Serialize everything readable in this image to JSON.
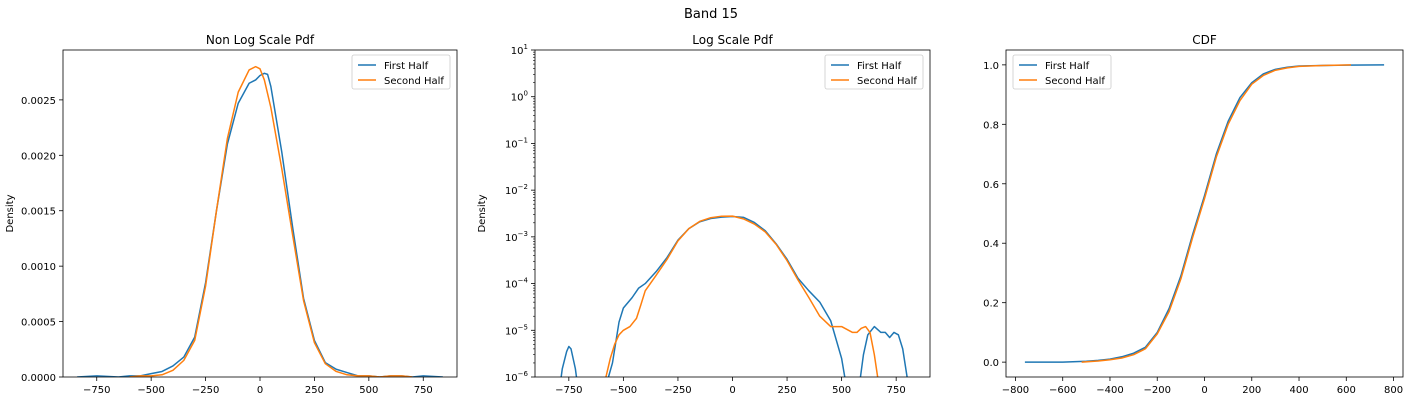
{
  "figure_title": "Band 15",
  "colors": {
    "first": "#1f77b4",
    "second": "#ff7f0e"
  },
  "chart_data": [
    {
      "type": "line",
      "title": "Non Log Scale Pdf",
      "xlabel": "",
      "ylabel": "Density",
      "xlim": [
        -905,
        905
      ],
      "ylim": [
        0,
        0.00295
      ],
      "xticks": [
        -750,
        -500,
        -250,
        0,
        250,
        500,
        750
      ],
      "xtick_labels": [
        "−750",
        "−500",
        "−250",
        "0",
        "250",
        "500",
        "750"
      ],
      "yticks": [
        0,
        0.0005,
        0.001,
        0.0015,
        0.002,
        0.0025
      ],
      "ytick_labels": [
        "0.0000",
        "0.0005",
        "0.0010",
        "0.0015",
        "0.0020",
        "0.0025"
      ],
      "grid": false,
      "legend": "upper-right",
      "series": [
        {
          "name": "First Half",
          "color": "#1f77b4",
          "x": [
            -840,
            -750,
            -650,
            -600,
            -550,
            -500,
            -450,
            -400,
            -350,
            -300,
            -250,
            -200,
            -150,
            -100,
            -50,
            -20,
            0,
            20,
            35,
            50,
            100,
            150,
            200,
            250,
            300,
            350,
            400,
            450,
            500,
            550,
            600,
            650,
            700,
            750,
            840
          ],
          "y": [
            0.0,
            1e-05,
            0.0,
            1e-05,
            1e-05,
            3e-05,
            5e-05,
            0.0001,
            0.00018,
            0.00036,
            0.00085,
            0.0015,
            0.0021,
            0.00247,
            0.00265,
            0.00268,
            0.00272,
            0.00274,
            0.00273,
            0.00262,
            0.00203,
            0.00135,
            0.00071,
            0.00033,
            0.00013,
            7e-05,
            4e-05,
            1e-05,
            1e-05,
            0.0,
            1e-05,
            1e-05,
            0.0,
            1e-05,
            0.0
          ]
        },
        {
          "name": "Second Half",
          "color": "#ff7f0e",
          "x": [
            -600,
            -550,
            -500,
            -450,
            -400,
            -350,
            -300,
            -250,
            -200,
            -150,
            -100,
            -50,
            -20,
            0,
            20,
            50,
            100,
            150,
            200,
            250,
            300,
            350,
            400,
            450,
            500,
            550,
            600,
            650,
            700
          ],
          "y": [
            0.0,
            1e-05,
            1e-05,
            2e-05,
            6e-05,
            0.00015,
            0.00033,
            0.00082,
            0.0015,
            0.00215,
            0.00257,
            0.00277,
            0.0028,
            0.00278,
            0.00268,
            0.00243,
            0.00188,
            0.00128,
            0.00069,
            0.00031,
            0.00012,
            5e-05,
            2e-05,
            1e-05,
            1e-05,
            0.0,
            1e-05,
            1e-05,
            0.0
          ]
        }
      ]
    },
    {
      "type": "line",
      "title": "Log Scale Pdf",
      "xlabel": "",
      "ylabel": "Density",
      "xscale": "linear",
      "yscale": "log",
      "xlim": [
        -905,
        905
      ],
      "ylim_exp": [
        -6,
        1
      ],
      "xticks": [
        -750,
        -500,
        -250,
        0,
        250,
        500,
        750
      ],
      "xtick_labels": [
        "−750",
        "−500",
        "−250",
        "0",
        "250",
        "500",
        "750"
      ],
      "yticks_exp": [
        -6,
        -5,
        -4,
        -3,
        -2,
        -1,
        0,
        1
      ],
      "grid": false,
      "legend": "upper-right",
      "series": [
        {
          "name": "First Half",
          "color": "#1f77b4",
          "x": [
            -800,
            -780,
            -760,
            -750,
            -740,
            -720,
            -700,
            -600,
            -550,
            -520,
            -500,
            -460,
            -430,
            -400,
            -350,
            -300,
            -250,
            -200,
            -150,
            -100,
            -50,
            0,
            50,
            100,
            150,
            200,
            250,
            300,
            350,
            400,
            450,
            500,
            520,
            540,
            560,
            580,
            600,
            620,
            650,
            680,
            700,
            720,
            740,
            760,
            780,
            800,
            820
          ],
          "y": [
            3e-07,
            1.5e-06,
            3.5e-06,
            4.5e-06,
            4e-06,
            1.5e-06,
            3e-07,
            3e-07,
            2e-06,
            1.5e-05,
            3e-05,
            5e-05,
            8e-05,
            0.0001,
            0.00018,
            0.00036,
            0.00085,
            0.0015,
            0.0021,
            0.00247,
            0.00265,
            0.00272,
            0.00262,
            0.00203,
            0.00135,
            0.00071,
            0.00033,
            0.00013,
            7e-05,
            4e-05,
            1.6e-05,
            2.5e-06,
            7e-07,
            2e-07,
            2e-07,
            6e-07,
            3e-06,
            8e-06,
            1.2e-05,
            9e-06,
            9e-06,
            7e-06,
            9e-06,
            8e-06,
            4e-06,
            1e-06,
            2e-07
          ]
        },
        {
          "name": "Second Half",
          "color": "#ff7f0e",
          "x": [
            -600,
            -580,
            -560,
            -540,
            -520,
            -500,
            -470,
            -440,
            -420,
            -400,
            -350,
            -300,
            -250,
            -200,
            -150,
            -100,
            -50,
            0,
            50,
            100,
            150,
            200,
            250,
            300,
            350,
            400,
            450,
            500,
            550,
            570,
            590,
            610,
            630,
            650,
            670,
            690
          ],
          "y": [
            3e-07,
            1e-06,
            2.5e-06,
            5e-06,
            8e-06,
            1e-05,
            1.2e-05,
            1.8e-05,
            3.5e-05,
            7e-05,
            0.00015,
            0.00033,
            0.00082,
            0.0015,
            0.00215,
            0.00257,
            0.00277,
            0.00278,
            0.00243,
            0.00188,
            0.00128,
            0.00069,
            0.00031,
            0.00012,
            5e-05,
            2e-05,
            1.2e-05,
            1.2e-05,
            9e-06,
            9e-06,
            1.1e-05,
            1.2e-05,
            9e-06,
            3e-06,
            7e-07,
            2e-07
          ]
        }
      ]
    },
    {
      "type": "line",
      "title": "CDF",
      "xlabel": "",
      "ylabel": "",
      "xlim": [
        -840,
        840
      ],
      "ylim": [
        -0.05,
        1.05
      ],
      "xticks": [
        -800,
        -600,
        -400,
        -200,
        0,
        200,
        400,
        600,
        800
      ],
      "xtick_labels": [
        "−800",
        "−600",
        "−400",
        "−200",
        "0",
        "200",
        "400",
        "600",
        "800"
      ],
      "yticks": [
        0,
        0.2,
        0.4,
        0.6,
        0.8,
        1.0
      ],
      "ytick_labels": [
        "0.0",
        "0.2",
        "0.4",
        "0.6",
        "0.8",
        "1.0"
      ],
      "grid": false,
      "legend": "upper-left",
      "series": [
        {
          "name": "First Half",
          "color": "#1f77b4",
          "x": [
            -760,
            -600,
            -500,
            -450,
            -400,
            -350,
            -300,
            -250,
            -200,
            -150,
            -100,
            -50,
            0,
            50,
            100,
            150,
            200,
            250,
            300,
            350,
            400,
            500,
            600,
            760
          ],
          "y": [
            0.0,
            0.0,
            0.003,
            0.006,
            0.01,
            0.018,
            0.03,
            0.05,
            0.1,
            0.18,
            0.29,
            0.43,
            0.56,
            0.7,
            0.81,
            0.89,
            0.94,
            0.97,
            0.985,
            0.992,
            0.996,
            0.998,
            0.999,
            1.0
          ]
        },
        {
          "name": "Second Half",
          "color": "#ff7f0e",
          "x": [
            -520,
            -450,
            -400,
            -350,
            -300,
            -250,
            -200,
            -150,
            -100,
            -50,
            0,
            50,
            100,
            150,
            200,
            250,
            300,
            350,
            400,
            500,
            620
          ],
          "y": [
            0.0,
            0.004,
            0.008,
            0.014,
            0.025,
            0.045,
            0.095,
            0.17,
            0.28,
            0.42,
            0.55,
            0.69,
            0.8,
            0.88,
            0.935,
            0.965,
            0.982,
            0.99,
            0.995,
            0.998,
            1.0
          ]
        }
      ]
    }
  ]
}
